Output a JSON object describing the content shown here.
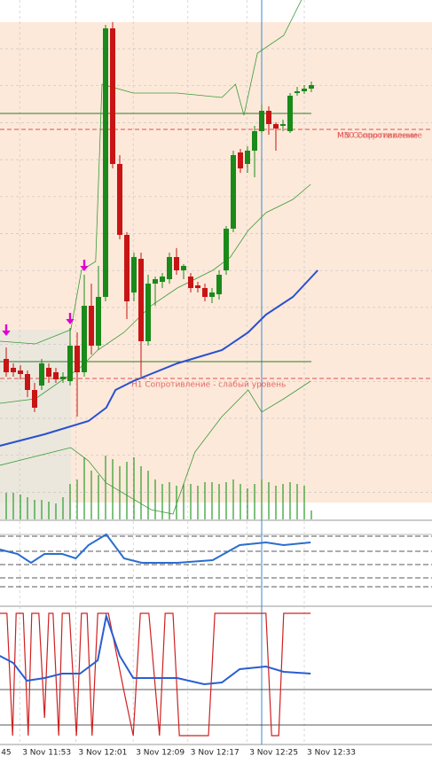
{
  "chart_data": {
    "type": "candlestick",
    "xlim": [
      -0.875,
      60
    ],
    "ylim": [
      0,
      586
    ],
    "xticks": [
      {
        "value": -1.1,
        "label": "45"
      },
      {
        "value": 1.9,
        "label": "3 Nov 11:53"
      },
      {
        "value": 9.8,
        "label": "3 Nov 12:01"
      },
      {
        "value": 17.9,
        "label": "3 Nov 12:09"
      },
      {
        "value": 25.6,
        "label": "3 Nov 12:17"
      },
      {
        "value": 33.9,
        "label": "3 Nov 12:25"
      },
      {
        "value": 42.0,
        "label": "3 Nov 12:33"
      }
    ],
    "up_color": "#1a8a1a",
    "down_color": "#c81414",
    "candles": [
      [
        181,
        194,
        161,
        166
      ],
      [
        171,
        176,
        161,
        166
      ],
      [
        168,
        174,
        158,
        164
      ],
      [
        164,
        168,
        138,
        146
      ],
      [
        146,
        154,
        121,
        126
      ],
      [
        151,
        181,
        146,
        176
      ],
      [
        171,
        176,
        154,
        161
      ],
      [
        166,
        171,
        154,
        158
      ],
      [
        158,
        166,
        154,
        161
      ],
      [
        156,
        216,
        151,
        196
      ],
      [
        196,
        211,
        116,
        166
      ],
      [
        166,
        276,
        161,
        241
      ],
      [
        241,
        266,
        186,
        196
      ],
      [
        196,
        286,
        191,
        251
      ],
      [
        251,
        558,
        246,
        554
      ],
      [
        554,
        561,
        396,
        401
      ],
      [
        401,
        411,
        316,
        321
      ],
      [
        321,
        324,
        226,
        246
      ],
      [
        256,
        301,
        246,
        296
      ],
      [
        294,
        301,
        161,
        201
      ],
      [
        201,
        276,
        196,
        266
      ],
      [
        266,
        274,
        241,
        271
      ],
      [
        268,
        278,
        261,
        274
      ],
      [
        271,
        301,
        266,
        296
      ],
      [
        296,
        306,
        276,
        281
      ],
      [
        281,
        288,
        271,
        286
      ],
      [
        274,
        278,
        256,
        261
      ],
      [
        264,
        268,
        256,
        261
      ],
      [
        261,
        266,
        246,
        251
      ],
      [
        251,
        261,
        244,
        256
      ],
      [
        254,
        281,
        248,
        276
      ],
      [
        281,
        331,
        276,
        328
      ],
      [
        328,
        416,
        324,
        411
      ],
      [
        414,
        418,
        391,
        396
      ],
      [
        401,
        421,
        391,
        416
      ],
      [
        416,
        444,
        386,
        438
      ],
      [
        438,
        468,
        436,
        461
      ],
      [
        461,
        466,
        434,
        446
      ],
      [
        446,
        448,
        416,
        441
      ],
      [
        444,
        451,
        438,
        446
      ],
      [
        438,
        481,
        436,
        478
      ],
      [
        481,
        488,
        478,
        483
      ],
      [
        483,
        490,
        480,
        486
      ],
      [
        486,
        494,
        482,
        490
      ]
    ],
    "volume_color": "#2a9a2a",
    "volumes": [
      30,
      30,
      28,
      25,
      22,
      22,
      20,
      18,
      25,
      40,
      45,
      70,
      55,
      50,
      72,
      68,
      60,
      65,
      70,
      60,
      55,
      45,
      40,
      42,
      38,
      40,
      40,
      38,
      42,
      42,
      40,
      42,
      45,
      40,
      35,
      40,
      45,
      42,
      38,
      40,
      42,
      40,
      38,
      10
    ],
    "lines": [
      {
        "color": "#3a9a3a",
        "width": 0.8,
        "x": [
          -0.9,
          4.1,
          9.1,
          10.6,
          12.6,
          13.5,
          17.9,
          24.1,
          30.4,
          32.3,
          33.5,
          35.4,
          39.1,
          41.6
        ],
        "values": [
          201,
          198,
          214,
          281,
          291,
          491,
          481,
          481,
          476,
          491,
          456,
          526,
          546,
          586
        ]
      },
      {
        "color": "#3a9a3a",
        "width": 0.8,
        "x": [
          -0.9,
          4.1,
          10.4,
          12.9,
          16.6,
          20.4,
          24.1,
          29.1,
          31.6,
          34.1,
          36.6,
          40.4,
          42.9
        ],
        "values": [
          131,
          136,
          171,
          191,
          211,
          241,
          261,
          281,
          296,
          326,
          346,
          361,
          378
        ]
      },
      {
        "color": "#3a9a3a",
        "width": 0.8,
        "x": [
          -0.9,
          4.1,
          9.1,
          11.6,
          14.1,
          20.4,
          23.5,
          26.6,
          30.4,
          34.1,
          36,
          39.1,
          42.9
        ],
        "values": [
          61,
          71,
          81,
          66,
          41,
          11,
          6,
          76,
          116,
          146,
          121,
          136,
          156
        ]
      },
      {
        "color": "#2850d0",
        "width": 2,
        "x": [
          -0.9,
          5.4,
          11.6,
          14.1,
          15.4,
          17.9,
          24.1,
          30.4,
          34.1,
          36.6,
          40.4,
          43.9
        ],
        "values": [
          83,
          96,
          111,
          126,
          146,
          156,
          176,
          191,
          211,
          231,
          251,
          281
        ]
      }
    ],
    "levels": [
      {
        "value": 458,
        "color": "#2a7a2a",
        "dash": false,
        "labels": []
      },
      {
        "value": 178,
        "color": "#2a7a2a",
        "dash": false,
        "labels": []
      },
      {
        "value": 440,
        "color": "#e05050",
        "dash": true,
        "labels": [
          "M30 Сопротивление",
          "MN Сопротивление"
        ]
      },
      {
        "value": 159,
        "color": "#e05050",
        "dash": true,
        "labels": [
          "H1 Сопротивление - слабый уровень"
        ]
      }
    ],
    "arrows": {
      "color": "#e000d0",
      "x": [
        0,
        9,
        11
      ],
      "values": [
        208,
        221,
        281
      ]
    },
    "panels": [
      {
        "ylim": [
          0,
          90
        ],
        "levels": [
          75,
          58,
          43,
          28,
          18
        ],
        "level_dash": true,
        "lines": [
          {
            "color": "#2a6ed0",
            "width": 2,
            "x": [
              -0.9,
              1.6,
              3.5,
              5.4,
              7.9,
              9.8,
              11.6,
              14.1,
              16.6,
              19.1,
              24.1,
              29.1,
              32.9,
              36.6,
              39.1,
              42.9
            ],
            "values": [
              60,
              55,
              45,
              55,
              55,
              50,
              65,
              77,
              50,
              45,
              45,
              48,
              65,
              68,
              65,
              68
            ]
          }
        ]
      },
      {
        "ylim": [
          0,
          155
        ],
        "levels": [
          62,
          22
        ],
        "level_dash": false,
        "lines": [
          {
            "color": "#d02020",
            "width": 1.2,
            "x": [
              -0.9,
              0.1,
              0.9,
              1.4,
              2.4,
              3.1,
              3.6,
              4.6,
              5.4,
              6,
              6.6,
              7.4,
              7.9,
              8.9,
              9.9,
              10.6,
              11.4,
              12.1,
              12.9,
              14.4,
              16.6,
              17.9,
              18.9,
              20.1,
              21.6,
              22.4,
              23.5,
              24.4,
              28.5,
              29.4,
              36.6,
              37.4,
              38.4,
              39.1,
              42.9
            ],
            "values": [
              148,
              148,
              10,
              148,
              148,
              10,
              148,
              148,
              30,
              148,
              148,
              10,
              148,
              148,
              10,
              148,
              148,
              10,
              148,
              148,
              60,
              10,
              148,
              148,
              10,
              148,
              148,
              10,
              10,
              148,
              148,
              10,
              10,
              148,
              148
            ]
          },
          {
            "color": "#2a5ed0",
            "width": 2,
            "x": [
              -0.9,
              1,
              2.9,
              5.4,
              7.9,
              10.4,
              12.9,
              14.1,
              16,
              17.9,
              20.4,
              24.1,
              27.9,
              30.4,
              32.9,
              36.6,
              39.1,
              42.9
            ],
            "values": [
              100,
              92,
              72,
              75,
              80,
              80,
              95,
              145,
              100,
              75,
              75,
              75,
              68,
              70,
              85,
              88,
              82,
              80
            ]
          }
        ]
      }
    ]
  }
}
